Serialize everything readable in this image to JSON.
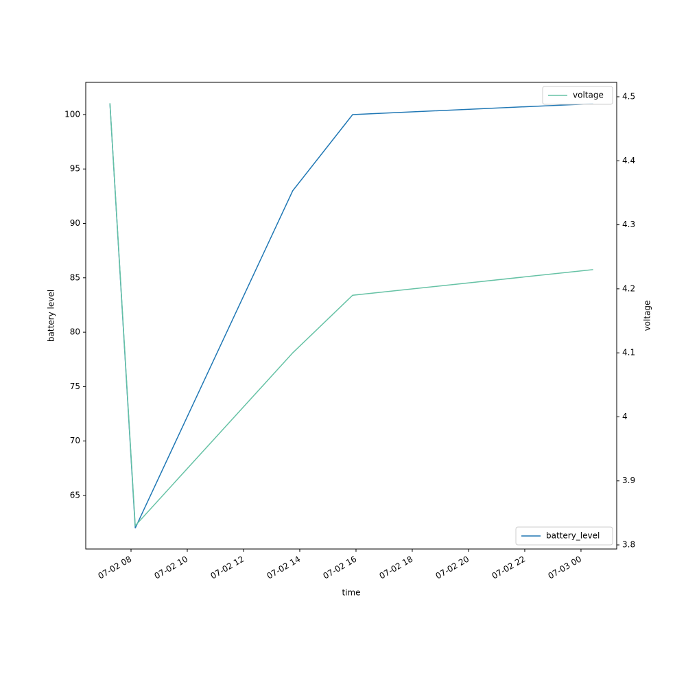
{
  "chart_data": {
    "type": "line",
    "x_label": "time",
    "y_label": "battery level",
    "y2_label": "voltage",
    "x": [
      7.25,
      8.15,
      13.75,
      15.88,
      24.43
    ],
    "series": [
      {
        "name": "battery_level",
        "color": "#1f77b4",
        "values": [
          101,
          62,
          93,
          100,
          101
        ]
      },
      {
        "name": "voltage",
        "color": "#66c2a5",
        "axis": "y2",
        "values": [
          4.49,
          3.83,
          4.1,
          4.19,
          4.23
        ]
      }
    ],
    "xlim": [
      6.39,
      25.27
    ],
    "xticks": [
      {
        "value": 8,
        "label": "07-02 08"
      },
      {
        "value": 10,
        "label": "07-02 10"
      },
      {
        "value": 12,
        "label": "07-02 12"
      },
      {
        "value": 14,
        "label": "07-02 14"
      },
      {
        "value": 16,
        "label": "07-02 16"
      },
      {
        "value": 18,
        "label": "07-02 18"
      },
      {
        "value": 20,
        "label": "07-02 20"
      },
      {
        "value": 22,
        "label": "07-02 22"
      },
      {
        "value": 24,
        "label": "07-03 00"
      }
    ],
    "ylim": [
      60.08,
      102.96
    ],
    "yticks": [
      65,
      70,
      75,
      80,
      85,
      90,
      95,
      100
    ],
    "y2lim": [
      3.7936,
      4.5225
    ],
    "y2ticks": [
      3.8,
      3.9,
      4.0,
      4.1,
      4.2,
      4.3,
      4.4,
      4.5
    ],
    "legend": {
      "y": "lower right",
      "y2": "upper right"
    }
  }
}
